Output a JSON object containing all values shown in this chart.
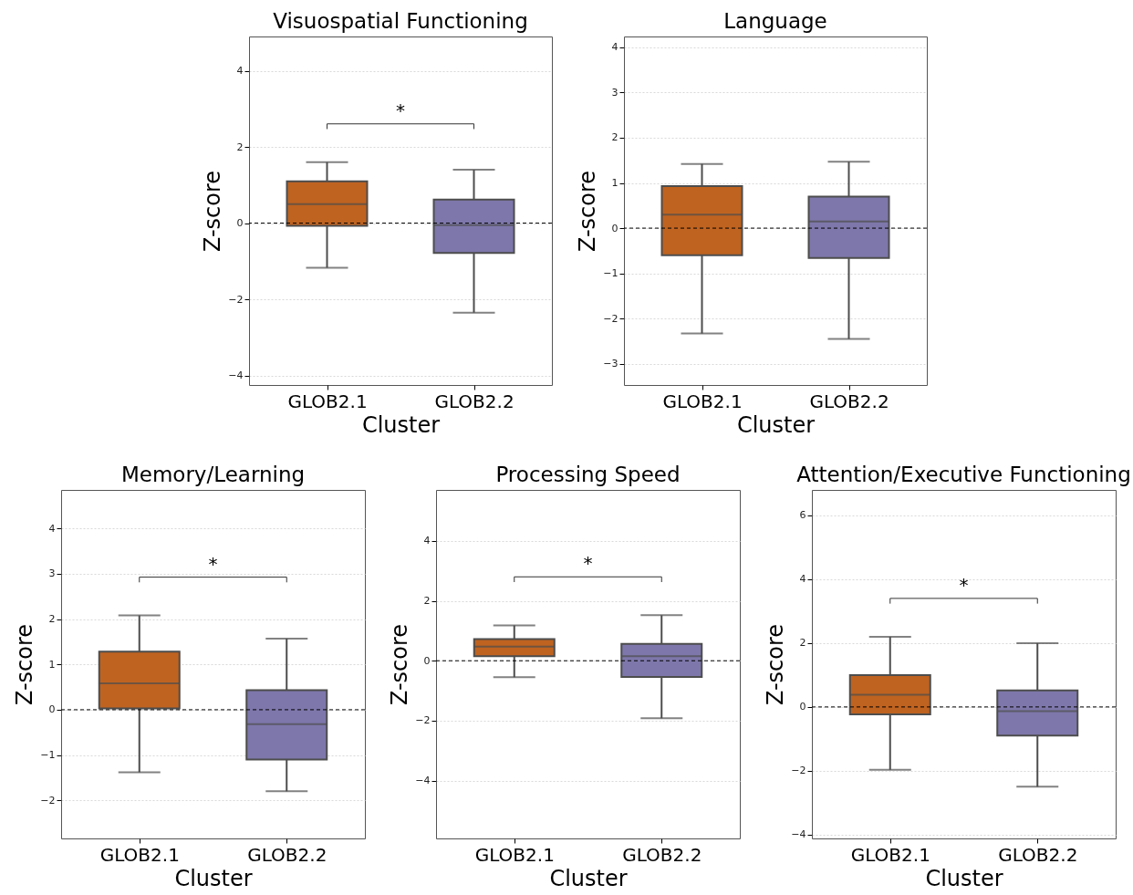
{
  "chart_data": [
    {
      "type": "box",
      "title": "Visuospatial Functioning",
      "xlabel": "Cluster",
      "ylabel": "Z-score",
      "categories": [
        "GLOB2.1",
        "GLOB2.2"
      ],
      "colors": [
        "#bf6320",
        "#7d77ab"
      ],
      "boxes": [
        {
          "low": -1.17,
          "q1": -0.07,
          "median": 0.5,
          "q3": 1.1,
          "high": 1.6
        },
        {
          "low": -2.35,
          "q1": -0.78,
          "median": -0.05,
          "q3": 0.62,
          "high": 1.4
        }
      ],
      "ylim": [
        -4.25,
        4.9
      ],
      "yticks": [
        -4,
        -2,
        0,
        2,
        4
      ],
      "grid": "y",
      "ref_lines": [
        {
          "axis": "y",
          "value": 0,
          "color": "#000000",
          "line_style": "dashed"
        }
      ],
      "annotations": [
        "*"
      ]
    },
    {
      "type": "box",
      "title": "Language",
      "xlabel": "Cluster",
      "ylabel": "Z-score",
      "categories": [
        "GLOB2.1",
        "GLOB2.2"
      ],
      "colors": [
        "#bf6320",
        "#7d77ab"
      ],
      "boxes": [
        {
          "low": -2.33,
          "q1": -0.6,
          "median": 0.3,
          "q3": 0.93,
          "high": 1.42
        },
        {
          "low": -2.45,
          "q1": -0.66,
          "median": 0.15,
          "q3": 0.7,
          "high": 1.47
        }
      ],
      "ylim": [
        -3.47,
        4.24
      ],
      "yticks": [
        -3,
        -2,
        -1,
        0,
        1,
        2,
        3,
        4
      ],
      "grid": "y",
      "ref_lines": [
        {
          "axis": "y",
          "value": 0,
          "color": "#000000",
          "line_style": "dashed"
        }
      ]
    },
    {
      "type": "box",
      "title": "Memory/Learning",
      "xlabel": "Cluster",
      "ylabel": "Z-score",
      "categories": [
        "GLOB2.1",
        "GLOB2.2"
      ],
      "colors": [
        "#bf6320",
        "#7d77ab"
      ],
      "boxes": [
        {
          "low": -1.38,
          "q1": 0.03,
          "median": 0.58,
          "q3": 1.28,
          "high": 2.08
        },
        {
          "low": -1.8,
          "q1": -1.1,
          "median": -0.32,
          "q3": 0.43,
          "high": 1.57
        }
      ],
      "ylim": [
        -2.84,
        4.85
      ],
      "yticks": [
        -2,
        -1,
        0,
        1,
        2,
        3,
        4
      ],
      "grid": "y",
      "ref_lines": [
        {
          "axis": "y",
          "value": 0,
          "color": "#000000",
          "line_style": "dashed"
        }
      ],
      "annotations": [
        "*"
      ]
    },
    {
      "type": "box",
      "title": "Processing Speed",
      "xlabel": "Cluster",
      "ylabel": "Z-score",
      "categories": [
        "GLOB2.1",
        "GLOB2.2"
      ],
      "colors": [
        "#bf6320",
        "#7d77ab"
      ],
      "boxes": [
        {
          "low": -0.55,
          "q1": 0.15,
          "median": 0.47,
          "q3": 0.72,
          "high": 1.18
        },
        {
          "low": -1.92,
          "q1": -0.54,
          "median": 0.15,
          "q3": 0.56,
          "high": 1.52
        }
      ],
      "ylim": [
        -5.93,
        5.7
      ],
      "yticks": [
        -4,
        -2,
        0,
        2,
        4
      ],
      "grid": "y",
      "ref_lines": [
        {
          "axis": "y",
          "value": 0,
          "color": "#000000",
          "line_style": "dashed"
        }
      ],
      "annotations": [
        "*"
      ]
    },
    {
      "type": "box",
      "title": "Attention/Executive Functioning",
      "xlabel": "Cluster",
      "ylabel": "Z-score",
      "categories": [
        "GLOB2.1",
        "GLOB2.2"
      ],
      "colors": [
        "#bf6320",
        "#7d77ab"
      ],
      "boxes": [
        {
          "low": -1.97,
          "q1": -0.23,
          "median": 0.38,
          "q3": 1.0,
          "high": 2.2
        },
        {
          "low": -2.5,
          "q1": -0.9,
          "median": -0.13,
          "q3": 0.52,
          "high": 2.0
        }
      ],
      "ylim": [
        -4.12,
        6.8
      ],
      "yticks": [
        -4,
        -2,
        0,
        2,
        4,
        6
      ],
      "grid": "y",
      "ref_lines": [
        {
          "axis": "y",
          "value": 0,
          "color": "#000000",
          "line_style": "dashed"
        }
      ],
      "annotations": [
        "*"
      ]
    }
  ]
}
